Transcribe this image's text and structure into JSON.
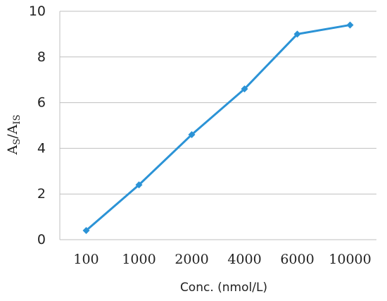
{
  "chart_data": {
    "type": "line",
    "categories": [
      "100",
      "1000",
      "2000",
      "4000",
      "6000",
      "10000"
    ],
    "series": [
      {
        "values": [
          0.4,
          2.4,
          4.6,
          6.6,
          9.0,
          9.4
        ],
        "color": "#2b93d6"
      }
    ],
    "xlabel": "Conc. (nmol/L)",
    "ylabel": {
      "base1": "A",
      "sub1": "S",
      "separator": "/",
      "base2": "A",
      "sub2": "IS"
    },
    "ylim": [
      0,
      10
    ],
    "yticks": [
      "0",
      "2",
      "4",
      "6",
      "8",
      "10"
    ],
    "grid": true,
    "marker": "diamond",
    "gridline_color": "#bfbfbf"
  }
}
